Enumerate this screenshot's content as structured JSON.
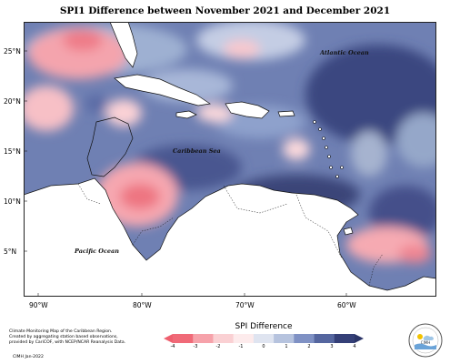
{
  "title": "SPI1 Difference between November 2021 and December 2021",
  "y_labels": [
    "25°N",
    "20°N",
    "15°N",
    "10°N",
    "5°N"
  ],
  "x_labels": [
    "90°W",
    "80°W",
    "70°W",
    "60°W"
  ],
  "ocean_labels": {
    "atlantic": "Atlantic Ocean",
    "caribbean": "Caribbean Sea",
    "pacific": "Pacific Ocean"
  },
  "footnote": [
    "Climate Monitoring Map of the Caribbean Region.",
    "Created by aggregating station based observations,",
    "provided by CariCOF, with NCEP/NCAR Reanalysis Data."
  ],
  "credit": "CIMH Jan-2022",
  "legend": {
    "title": "SPI Difference",
    "ticks": [
      "-4",
      "-3",
      "-2",
      "-1",
      "0",
      "1",
      "2",
      "3",
      "4"
    ],
    "colors": [
      "#f06a78",
      "#f6a2aa",
      "#fad0d3",
      "#fdebec",
      "#dfe4f0",
      "#b6c3de",
      "#7f91c4",
      "#55669f",
      "#343f77"
    ]
  },
  "logo_text": "CIMH"
}
